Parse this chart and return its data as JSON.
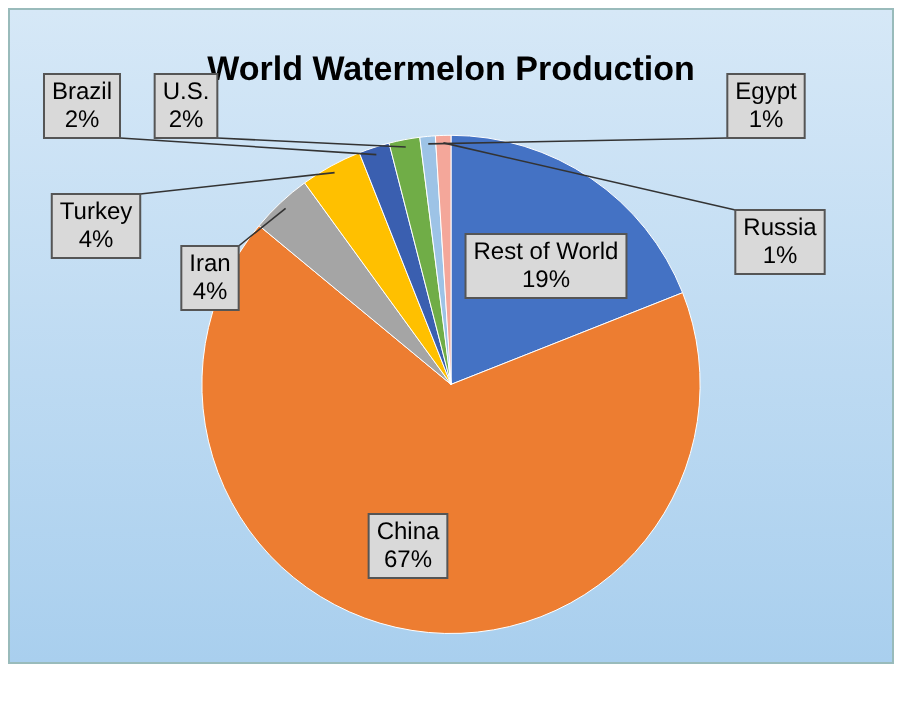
{
  "chart_data": {
    "type": "pie",
    "title": "World Watermelon Production",
    "categories": [
      "Rest of World",
      "China",
      "Iran",
      "Turkey",
      "Brazil",
      "U.S.",
      "Egypt",
      "Russia"
    ],
    "values": [
      19,
      67,
      4,
      4,
      2,
      2,
      1,
      1
    ],
    "value_labels": [
      "19%",
      "67%",
      "4%",
      "4%",
      "2%",
      "2%",
      "1%",
      "1%"
    ],
    "colors": [
      "#4472c4",
      "#ed7d31",
      "#a5a5a5",
      "#ffc000",
      "#3a5fb0",
      "#70ad47",
      "#9dc3e6",
      "#f4a79a"
    ]
  }
}
